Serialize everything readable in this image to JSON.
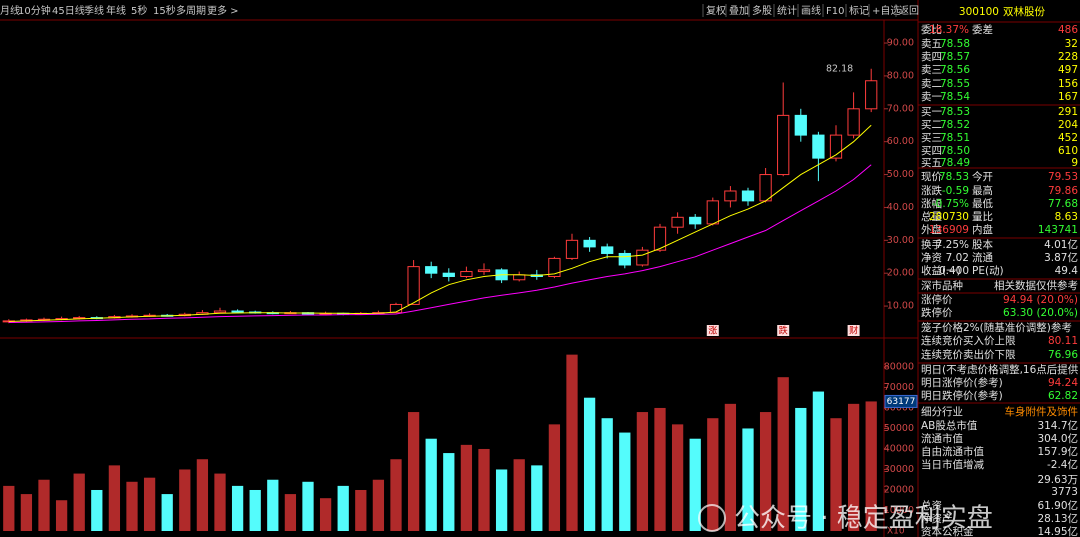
{
  "toolbar": {
    "tabs": [
      "月线",
      "10分钟",
      "45日线",
      "季线",
      "年线",
      "5秒",
      "15秒",
      "多周期",
      "更多 >"
    ],
    "buttons": [
      "复权",
      "叠加",
      "多股",
      "统计",
      "画线",
      "F10",
      "标记",
      "+自选",
      "返回"
    ]
  },
  "chart_data": [
    {
      "type": "candlestick",
      "high_label": "82.18",
      "ylim": [
        0.9,
        96.4
      ],
      "yticks": [
        {
          "value": 10,
          "label": "10.00"
        },
        {
          "value": 20,
          "label": "20.00"
        },
        {
          "value": 30,
          "label": "30.00"
        },
        {
          "value": 40,
          "label": "40.00"
        },
        {
          "value": 50,
          "label": "50.00"
        },
        {
          "value": 60,
          "label": "60.00"
        },
        {
          "value": 70,
          "label": "70.00"
        },
        {
          "value": 80,
          "label": "80.00"
        },
        {
          "value": 90,
          "label": "90.00"
        }
      ],
      "up_color": "#ff3c3c",
      "down_color": "#54fcfc",
      "candles": [
        [
          5.2,
          6.0,
          4.8,
          5.5
        ],
        [
          5.5,
          6.2,
          5.2,
          5.8
        ],
        [
          5.8,
          6.5,
          5.5,
          6.0
        ],
        [
          6.0,
          6.8,
          5.7,
          6.2
        ],
        [
          6.2,
          7.0,
          5.9,
          6.5
        ],
        [
          6.5,
          6.9,
          6.0,
          6.4
        ],
        [
          6.4,
          7.3,
          6.2,
          6.8
        ],
        [
          6.8,
          7.5,
          6.5,
          7.0
        ],
        [
          7.0,
          7.8,
          6.7,
          7.2
        ],
        [
          7.2,
          7.6,
          6.8,
          7.1
        ],
        [
          7.1,
          8.0,
          6.9,
          7.5
        ],
        [
          7.5,
          8.8,
          7.3,
          8.0
        ],
        [
          8.0,
          9.5,
          7.8,
          8.5
        ],
        [
          8.5,
          9.0,
          7.9,
          8.2
        ],
        [
          8.2,
          8.6,
          7.7,
          8.0
        ],
        [
          8.0,
          8.4,
          7.5,
          7.8
        ],
        [
          7.8,
          8.5,
          7.6,
          8.0
        ],
        [
          8.0,
          8.2,
          7.3,
          7.6
        ],
        [
          7.6,
          8.3,
          7.4,
          7.8
        ],
        [
          7.8,
          8.0,
          7.2,
          7.5
        ],
        [
          7.5,
          8.2,
          7.3,
          7.8
        ],
        [
          7.8,
          8.6,
          7.6,
          8.0
        ],
        [
          8.0,
          11.0,
          7.9,
          10.5
        ],
        [
          10.5,
          24.0,
          10.5,
          22.0
        ],
        [
          22.0,
          23.5,
          18.5,
          20.0
        ],
        [
          20.0,
          21.5,
          17.5,
          19.0
        ],
        [
          19.0,
          22.0,
          18.5,
          20.5
        ],
        [
          20.5,
          23.0,
          19.5,
          21.0
        ],
        [
          21.0,
          21.5,
          17.0,
          18.0
        ],
        [
          18.0,
          20.5,
          17.5,
          19.5
        ],
        [
          19.5,
          21.0,
          18.0,
          19.0
        ],
        [
          19.0,
          25.0,
          18.5,
          24.5
        ],
        [
          24.5,
          32.0,
          24.0,
          30.0
        ],
        [
          30.0,
          31.0,
          26.5,
          28.0
        ],
        [
          28.0,
          29.0,
          24.5,
          26.0
        ],
        [
          26.0,
          27.0,
          21.5,
          22.5
        ],
        [
          22.5,
          28.0,
          22.0,
          27.0
        ],
        [
          27.0,
          35.0,
          26.5,
          34.0
        ],
        [
          34.0,
          38.5,
          32.0,
          37.0
        ],
        [
          37.0,
          38.0,
          33.5,
          35.0
        ],
        [
          35.0,
          43.0,
          34.5,
          42.0
        ],
        [
          42.0,
          46.5,
          40.0,
          45.0
        ],
        [
          45.0,
          46.0,
          40.5,
          42.0
        ],
        [
          42.0,
          52.0,
          41.5,
          50.0
        ],
        [
          50.0,
          78.0,
          49.5,
          68.0
        ],
        [
          68.0,
          70.0,
          60.0,
          62.0
        ],
        [
          62.0,
          63.0,
          48.0,
          55.0
        ],
        [
          55.0,
          65.0,
          54.0,
          62.0
        ],
        [
          62.0,
          75.0,
          61.0,
          70.0
        ],
        [
          70.0,
          82.18,
          69.0,
          78.53
        ]
      ],
      "lines": [
        {
          "color": "#ffff00",
          "values": [
            5.3,
            5.5,
            5.7,
            5.9,
            6.1,
            6.3,
            6.5,
            6.7,
            6.9,
            7.0,
            7.2,
            7.5,
            7.8,
            7.9,
            8.0,
            8.0,
            7.9,
            7.9,
            7.8,
            7.8,
            7.7,
            7.8,
            8.2,
            11.0,
            14.0,
            16.5,
            18.0,
            19.0,
            19.5,
            19.5,
            19.3,
            19.8,
            21.5,
            23.5,
            25.0,
            25.0,
            25.5,
            27.5,
            30.0,
            32.5,
            35.0,
            37.5,
            39.5,
            42.0,
            46.0,
            50.0,
            53.0,
            56.0,
            60.0,
            65.0
          ]
        },
        {
          "color": "#ff00ff",
          "values": [
            5.0,
            5.1,
            5.2,
            5.3,
            5.5,
            5.6,
            5.8,
            6.0,
            6.1,
            6.3,
            6.4,
            6.6,
            6.8,
            6.9,
            7.0,
            7.1,
            7.2,
            7.3,
            7.3,
            7.4,
            7.4,
            7.5,
            7.6,
            8.5,
            9.5,
            10.5,
            11.5,
            12.5,
            13.3,
            14.0,
            14.8,
            15.8,
            17.0,
            18.0,
            19.0,
            19.8,
            20.8,
            22.0,
            23.5,
            25.0,
            27.0,
            29.0,
            31.0,
            33.0,
            36.0,
            39.0,
            42.0,
            45.0,
            48.5,
            53.0
          ]
        }
      ],
      "events": [
        {
          "candle": 40,
          "label": "涨"
        },
        {
          "candle": 44,
          "label": "跌"
        },
        {
          "candle": 48,
          "label": "财"
        }
      ]
    },
    {
      "type": "volume",
      "current_label": "63177",
      "scale_label": "X10",
      "ylim": [
        0,
        90700
      ],
      "yticks": [
        10000,
        20000,
        30000,
        40000,
        50000,
        60000,
        70000,
        80000
      ],
      "values": [
        22000,
        18000,
        25000,
        15000,
        28000,
        20000,
        32000,
        24000,
        26000,
        18000,
        30000,
        35000,
        28000,
        22000,
        20000,
        25000,
        18000,
        24000,
        16000,
        22000,
        20000,
        25000,
        35000,
        58000,
        45000,
        38000,
        42000,
        40000,
        30000,
        35000,
        32000,
        52000,
        86000,
        65000,
        55000,
        48000,
        58000,
        60000,
        52000,
        45000,
        55000,
        62000,
        50000,
        58000,
        75000,
        60000,
        68000,
        55000,
        62000,
        63177
      ]
    }
  ],
  "quote": {
    "code": "300100",
    "name": "双林股份",
    "ratio": [
      [
        "委比",
        "18.37%",
        "委差",
        "486"
      ]
    ],
    "asks": [
      [
        "卖五",
        "78.58",
        "32"
      ],
      [
        "卖四",
        "78.57",
        "228"
      ],
      [
        "卖三",
        "78.56",
        "497"
      ],
      [
        "卖二",
        "78.55",
        "156"
      ],
      [
        "卖一",
        "78.54",
        "167"
      ]
    ],
    "bids": [
      [
        "买一",
        "78.53",
        "291"
      ],
      [
        "买二",
        "78.52",
        "204"
      ],
      [
        "买三",
        "78.51",
        "452"
      ],
      [
        "买四",
        "78.50",
        "610"
      ],
      [
        "买五",
        "78.49",
        "9"
      ]
    ],
    "main": [
      [
        "现价",
        "78.53",
        "今开",
        "79.53"
      ],
      [
        "涨跌",
        "-0.59",
        "最高",
        "79.86"
      ],
      [
        "涨幅",
        "-0.75%",
        "最低",
        "77.68"
      ],
      [
        "总量",
        "280730",
        "量比",
        "8.63"
      ],
      [
        "外盘",
        "136909",
        "内盘",
        "143741"
      ]
    ],
    "stats": [
      [
        "换手",
        "7.25%",
        "股本",
        "4.01亿"
      ],
      [
        "净资",
        "7.02",
        "流通",
        "3.87亿"
      ],
      [
        "收益(一)",
        "0.400",
        "PE(动)",
        "49.4"
      ]
    ],
    "market": [
      [
        "深市品种",
        "相关数据仅供参考"
      ]
    ],
    "limits": [
      [
        "涨停价",
        "94.94 (20.0%)"
      ],
      [
        "跌停价",
        "63.30 (20.0%)"
      ]
    ],
    "cage_note": "笼子价格2%(随基准价调整)参考",
    "cage": [
      [
        "连续竞价买入价上限",
        "80.11"
      ],
      [
        "连续竞价卖出价下限",
        "76.96"
      ]
    ],
    "next_note": "明日(不考虑价格调整,16点后提供",
    "next": [
      [
        "明日涨停价(参考)",
        "94.24"
      ],
      [
        "明日跌停价(参考)",
        "62.82"
      ]
    ],
    "industry": [
      [
        "细分行业",
        "车身附件及饰件"
      ],
      [
        "AB股总市值",
        "314.7亿"
      ],
      [
        "流通市值",
        "304.0亿"
      ],
      [
        "自由流通市值",
        "157.9亿"
      ],
      [
        "当日市值增减",
        "-2.4亿"
      ],
      [
        "29.63万"
      ],
      [
        "3773"
      ],
      [
        "总资",
        "61.90亿"
      ],
      [
        "净资产",
        "28.13亿"
      ],
      [
        "资本公积金",
        "14.95亿"
      ]
    ]
  },
  "watermark": "公众号 · 稳定盈利实盘"
}
